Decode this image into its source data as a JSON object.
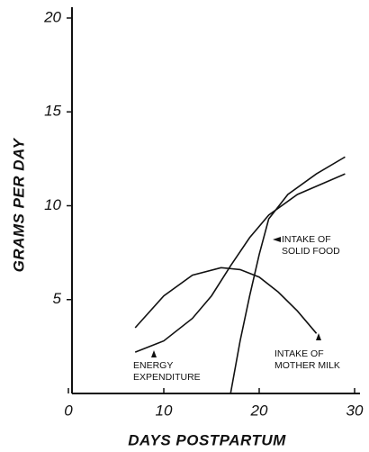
{
  "chart_data": {
    "type": "line",
    "x_label": "DAYS POSTPARTUM",
    "y_label": "GRAMS PER DAY",
    "xlim": [
      0,
      30
    ],
    "ylim": [
      0,
      20
    ],
    "xticks": [
      0,
      10,
      20,
      30
    ],
    "yticks": [
      5,
      10,
      15,
      20
    ],
    "series": [
      {
        "color": "#111111",
        "x": [
          7,
          10,
          13,
          16,
          18,
          20,
          22,
          24,
          26
        ],
        "values": [
          3.5,
          5.2,
          6.3,
          6.7,
          6.6,
          6.2,
          5.4,
          4.4,
          3.2
        ]
      },
      {
        "color": "#111111",
        "x": [
          7,
          10,
          13,
          15,
          17,
          19,
          21,
          24,
          29
        ],
        "values": [
          2.2,
          2.8,
          4.0,
          5.2,
          6.8,
          8.3,
          9.5,
          10.6,
          11.7
        ]
      },
      {
        "color": "#111111",
        "x": [
          17,
          18,
          19,
          20,
          21,
          23,
          26,
          29
        ],
        "values": [
          0,
          2.8,
          5.2,
          7.4,
          9.3,
          10.6,
          11.7,
          12.6
        ]
      }
    ],
    "annotations": [
      [
        "INTAKE OF",
        "SOLID FOOD"
      ],
      [
        "ENERGY",
        "EXPENDITURE"
      ],
      [
        "INTAKE OF",
        "MOTHER MILK"
      ]
    ]
  }
}
